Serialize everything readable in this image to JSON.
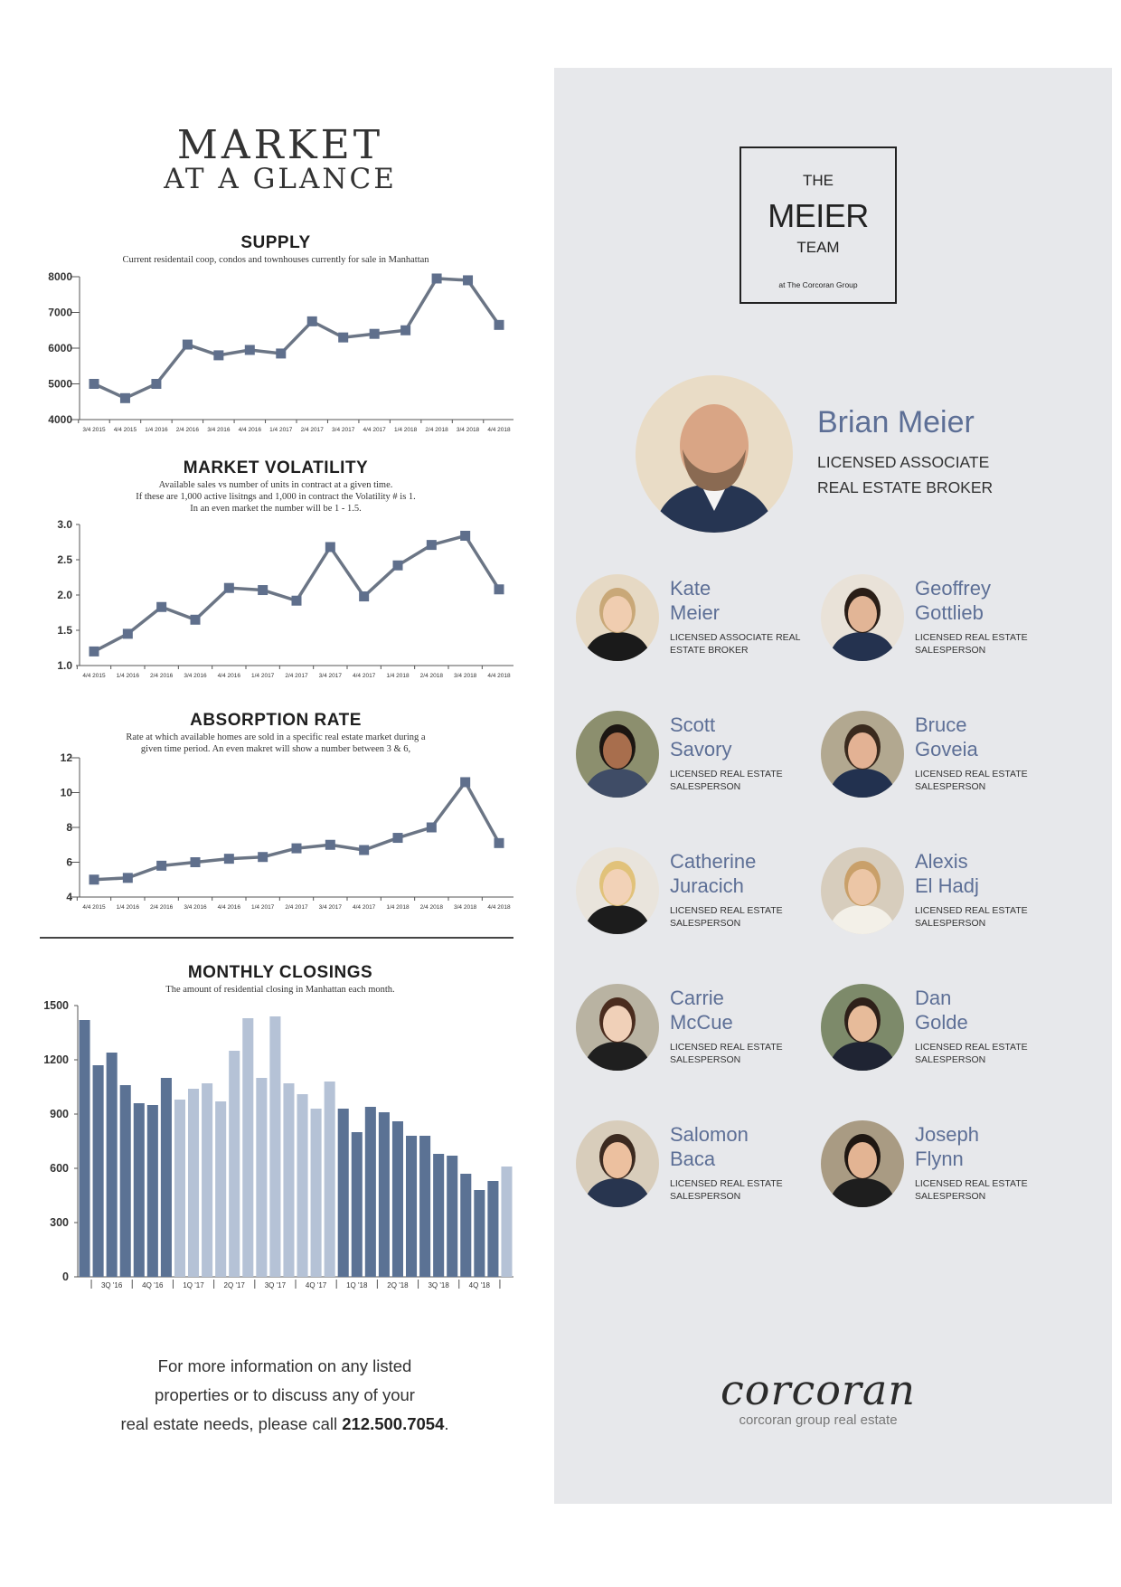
{
  "header": {
    "title_line1": "MARKET",
    "title_line2": "AT A GLANCE"
  },
  "charts": {
    "supply": {
      "title": "SUPPLY",
      "subtitle": "Current residentail coop, condos and townhouses currently for sale in Manhattan"
    },
    "volatility": {
      "title": "MARKET VOLATILITY",
      "subtitle_lines": [
        "Available sales vs number of units in contract at a given time.",
        "If these are 1,000 active lisitngs and 1,000 in contract the Volatility # is 1.",
        "In an even market the number will be 1 - 1.5."
      ]
    },
    "absorption": {
      "title": "ABSORPTION RATE",
      "subtitle_lines": [
        "Rate at which available homes are sold in a specific real estate market during a",
        "given time period. An even makret will show a number between 3 & 6,"
      ]
    },
    "closings": {
      "title": "MONTHLY CLOSINGS",
      "subtitle": "The amount of residential closing in Manhattan each month."
    }
  },
  "chart_data": [
    {
      "type": "line",
      "title": "SUPPLY",
      "categories": [
        "3/4 2015",
        "4/4 2015",
        "1/4 2016",
        "2/4 2016",
        "3/4 2016",
        "4/4 2016",
        "1/4 2017",
        "2/4 2017",
        "3/4 2017",
        "4/4 2017",
        "1/4 2018",
        "2/4 2018",
        "3/4 2018",
        "4/4 2018"
      ],
      "values": [
        5000,
        4600,
        5000,
        6100,
        5800,
        5950,
        5850,
        6750,
        6300,
        6400,
        6500,
        7950,
        7900,
        6650
      ],
      "ylim": [
        4000,
        8000
      ],
      "yticks": [
        "4000",
        "5000",
        "6000",
        "7000",
        "8000"
      ]
    },
    {
      "type": "line",
      "title": "MARKET VOLATILITY",
      "categories": [
        "4/4 2015",
        "1/4 2016",
        "2/4 2016",
        "3/4 2016",
        "4/4 2016",
        "1/4 2017",
        "2/4 2017",
        "3/4 2017",
        "4/4 2017",
        "1/4 2018",
        "2/4 2018",
        "3/4 2018",
        "4/4 2018"
      ],
      "values": [
        1.2,
        1.45,
        1.83,
        1.65,
        2.1,
        2.07,
        1.92,
        2.68,
        1.98,
        2.42,
        2.71,
        2.84,
        2.08
      ],
      "ylim": [
        1.0,
        3.0
      ],
      "yticks": [
        "1.0",
        "1.5",
        "2.0",
        "2.5",
        "3.0"
      ]
    },
    {
      "type": "line",
      "title": "ABSORPTION RATE",
      "categories": [
        "4/4 2015",
        "1/4 2016",
        "2/4 2016",
        "3/4 2016",
        "4/4 2016",
        "1/4 2017",
        "2/4 2017",
        "3/4 2017",
        "4/4 2017",
        "1/4 2018",
        "2/4 2018",
        "3/4 2018",
        "4/4 2018"
      ],
      "values": [
        5.0,
        5.1,
        5.8,
        6.0,
        6.2,
        6.3,
        6.8,
        7.0,
        6.7,
        7.4,
        8.0,
        10.6,
        7.1
      ],
      "ylim": [
        4,
        12
      ],
      "yticks": [
        "4",
        "6",
        "8",
        "10",
        "12"
      ]
    },
    {
      "type": "bar",
      "title": "MONTHLY CLOSINGS",
      "values": [
        1420,
        1170,
        1240,
        1060,
        960,
        950,
        1100,
        980,
        1040,
        1070,
        970,
        1250,
        1430,
        1100,
        1440,
        1070,
        1010,
        930,
        1080,
        930,
        800,
        940,
        910,
        860,
        780,
        780,
        680,
        670,
        570,
        480,
        530,
        610
      ],
      "shade": [
        "d",
        "d",
        "d",
        "d",
        "d",
        "d",
        "d",
        "l",
        "l",
        "l",
        "l",
        "l",
        "l",
        "l",
        "l",
        "l",
        "l",
        "l",
        "l",
        "d",
        "d",
        "d",
        "d",
        "d",
        "d",
        "d",
        "d",
        "d",
        "d",
        "d",
        "d",
        "l"
      ],
      "quarter_labels": [
        "3Q '16",
        "4Q '16",
        "1Q '17",
        "2Q '17",
        "3Q '17",
        "4Q '17",
        "1Q '18",
        "2Q '18",
        "3Q '18",
        "4Q '18"
      ],
      "ylim": [
        0,
        1500
      ],
      "yticks": [
        "0",
        "300",
        "600",
        "900",
        "1200",
        "1500"
      ],
      "colors": {
        "dark": "#5b7294",
        "light": "#b5c2d6"
      }
    }
  ],
  "footer": {
    "line1": "For more information on any listed",
    "line2": "properties or to discuss any of your",
    "line3_prefix": "real estate needs, please call ",
    "phone": "212.500.7054",
    "line3_suffix": "."
  },
  "team_logo": {
    "the": "THE",
    "name": "MEIER",
    "team": "TEAM",
    "sub": "at The Corcoran Group"
  },
  "lead": {
    "name": "Brian Meier",
    "title_line1": "LICENSED ASSOCIATE",
    "title_line2": "REAL ESTATE BROKER"
  },
  "agents": [
    {
      "first": "Kate",
      "last": "Meier",
      "role": "LICENSED ASSOCIATE REAL ESTATE BROKER"
    },
    {
      "first": "Geoffrey",
      "last": "Gottlieb",
      "role": "LICENSED REAL ESTATE SALESPERSON"
    },
    {
      "first": "Scott",
      "last": "Savory",
      "role": "LICENSED REAL ESTATE SALESPERSON"
    },
    {
      "first": "Bruce",
      "last": "Goveia",
      "role": "LICENSED REAL ESTATE SALESPERSON"
    },
    {
      "first": "Catherine",
      "last": "Juracich",
      "role": "LICENSED REAL ESTATE SALESPERSON"
    },
    {
      "first": "Alexis",
      "last": "El Hadj",
      "role": "LICENSED REAL ESTATE SALESPERSON"
    },
    {
      "first": "Carrie",
      "last": "McCue",
      "role": "LICENSED REAL ESTATE SALESPERSON"
    },
    {
      "first": "Dan",
      "last": "Golde",
      "role": "LICENSED REAL ESTATE SALESPERSON"
    },
    {
      "first": "Salomon",
      "last": "Baca",
      "role": "LICENSED REAL ESTATE SALESPERSON"
    },
    {
      "first": "Joseph",
      "last": "Flynn",
      "role": "LICENSED REAL ESTATE SALESPERSON"
    }
  ],
  "brand": {
    "logo_text": "corcoran",
    "tagline": "corcoran group real estate"
  }
}
